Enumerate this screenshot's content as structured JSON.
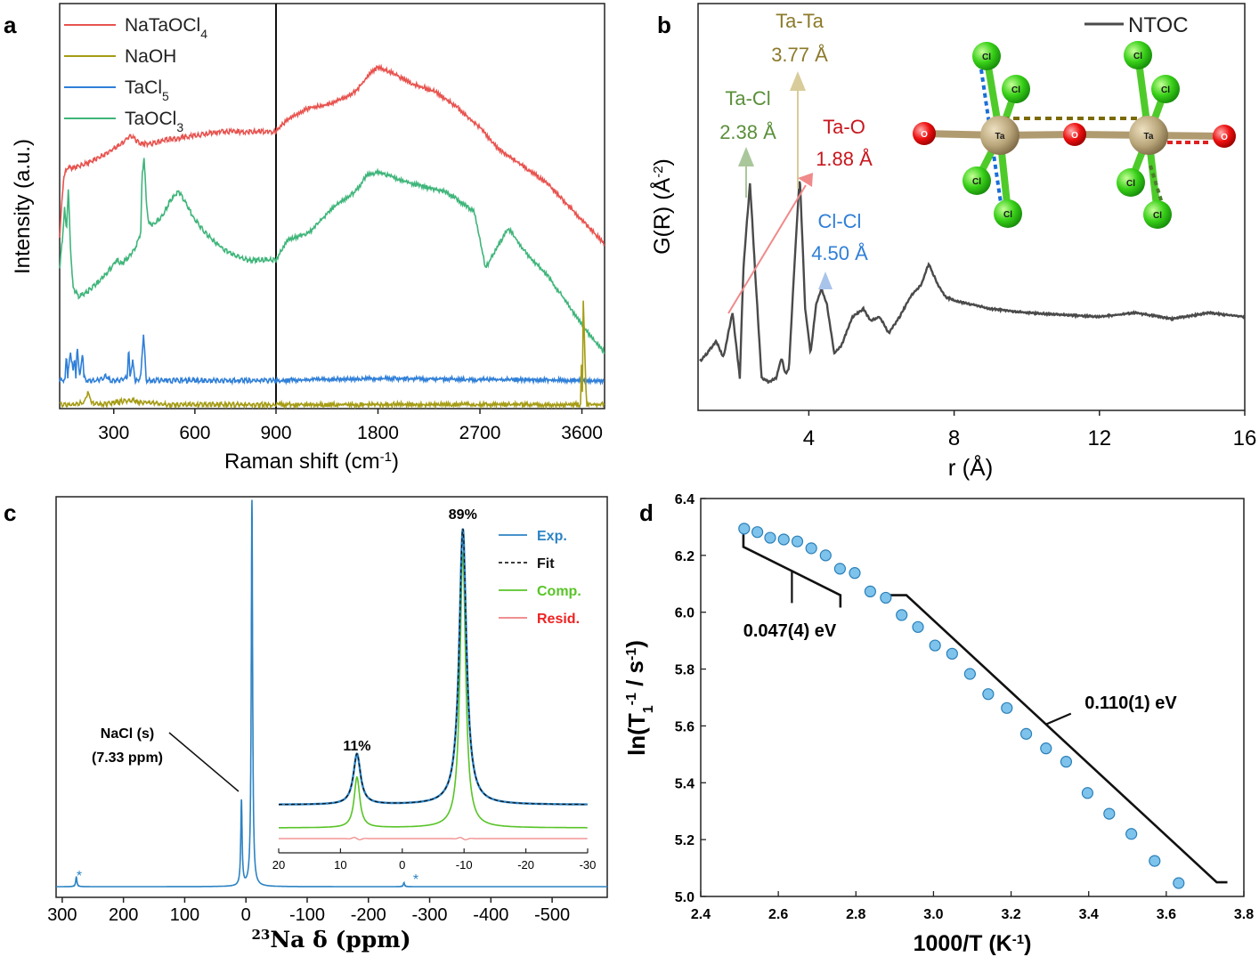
{
  "figure": {
    "background": "#ffffff"
  },
  "colors": {
    "red": "#e8534f",
    "olive": "#a59c14",
    "blue": "#2f7fd8",
    "green": "#3fb57a",
    "gray": "#4a4a4a",
    "brown": "#8c7a2a",
    "cl_green": "#5a8f3a",
    "o_red": "#c8161d",
    "exp": "#2c83c4",
    "fit": "#222222",
    "comp": "#58c428",
    "resid": "#f08080",
    "dot": "#7ec3ec"
  },
  "chart_data": [
    {
      "panel": "a",
      "type": "line",
      "xlabel_main": "Raman shift (cm",
      "xlabel_sup": "-1",
      "xlabel_close": ")",
      "ylabel": "Intensity (a.u.)",
      "xticks": [
        "300",
        "600",
        "900",
        "1800",
        "2700",
        "3600"
      ],
      "legend": [
        {
          "main": "NaTaOCl",
          "sub": "4",
          "color": "#e8534f"
        },
        {
          "main": "NaOH",
          "sub": "",
          "color": "#a59c14"
        },
        {
          "main": "TaCl",
          "sub": "5",
          "color": "#2f7fd8"
        },
        {
          "main": "TaOCl",
          "sub": "3",
          "color": "#3fb57a"
        }
      ],
      "break_at": 900,
      "left_range": [
        100,
        900
      ],
      "right_range": [
        900,
        3800
      ],
      "ylim": [
        0,
        100
      ],
      "series": [
        {
          "name": "NaTaOCl4",
          "color": "#e8534f",
          "x": [
            100,
            115,
            130,
            150,
            200,
            260,
            330,
            360,
            400,
            440,
            500,
            600,
            700,
            800,
            900,
            1000,
            1200,
            1400,
            1600,
            1750,
            1800,
            1900,
            2100,
            2300,
            2500,
            2700,
            2850,
            2950,
            3100,
            3300,
            3500,
            3700,
            3800
          ],
          "y": [
            43,
            58,
            60,
            60,
            61,
            63,
            66,
            68,
            66,
            66,
            67,
            68,
            69,
            69,
            69,
            72,
            75,
            76,
            79,
            84,
            85,
            84,
            81,
            79,
            75,
            70,
            65,
            63,
            60,
            56,
            50,
            44,
            41
          ]
        },
        {
          "name": "TaOCl3",
          "color": "#3fb57a",
          "x": [
            100,
            110,
            118,
            125,
            132,
            140,
            150,
            170,
            200,
            250,
            290,
            310,
            330,
            360,
            380,
            400,
            405,
            412,
            420,
            430,
            450,
            480,
            510,
            540,
            560,
            600,
            650,
            700,
            750,
            800,
            850,
            900,
            1000,
            1200,
            1400,
            1600,
            1700,
            1800,
            1900,
            2100,
            2400,
            2650,
            2750,
            2850,
            2950,
            3100,
            3300,
            3500,
            3650,
            3800
          ],
          "y": [
            35,
            42,
            50,
            44,
            55,
            40,
            30,
            28,
            29,
            32,
            35,
            37,
            36,
            38,
            40,
            44,
            58,
            63,
            52,
            46,
            46,
            48,
            52,
            54,
            52,
            47,
            43,
            40,
            38,
            37,
            37,
            37,
            42,
            44,
            50,
            54,
            58,
            59,
            58,
            56,
            54,
            49,
            35,
            40,
            45,
            39,
            33,
            25,
            19,
            14
          ]
        },
        {
          "name": "TaCl5",
          "color": "#2f7fd8",
          "x": [
            100,
            120,
            125,
            130,
            140,
            150,
            155,
            160,
            165,
            175,
            185,
            190,
            195,
            205,
            240,
            270,
            290,
            320,
            350,
            355,
            360,
            370,
            380,
            390,
            400,
            410,
            420,
            425,
            430,
            440,
            460,
            500,
            600,
            800,
            900,
            1800,
            3800
          ],
          "y": [
            7,
            7,
            14,
            8,
            14,
            9,
            13,
            8,
            15,
            8,
            14,
            8,
            7,
            7,
            7,
            8,
            7,
            7,
            8,
            15,
            8,
            12,
            7,
            7,
            8,
            19,
            7,
            7,
            7,
            7,
            7,
            7,
            7,
            7,
            7,
            7.5,
            7
          ]
        },
        {
          "name": "NaOH",
          "color": "#a59c14",
          "x": [
            100,
            150,
            190,
            205,
            220,
            260,
            330,
            370,
            400,
            430,
            500,
            600,
            900,
            3500,
            3590,
            3598,
            3603,
            3612,
            3640,
            3800
          ],
          "y": [
            1,
            1,
            1.5,
            4,
            1.5,
            1,
            1.8,
            2,
            1.5,
            1.5,
            1,
            1,
            1,
            1,
            1,
            15,
            1,
            27,
            1,
            1
          ]
        }
      ]
    },
    {
      "panel": "b",
      "type": "line",
      "title": "NTOC",
      "xlabel": "r (Å)",
      "ylabel_main": "G(R) (Å",
      "ylabel_sup": "-2",
      "ylabel_close": ")",
      "xlim": [
        1,
        16
      ],
      "xticks": [
        4,
        8,
        12,
        16
      ],
      "ylim": [
        0,
        100
      ],
      "annotations": [
        {
          "label": "Ta-Cl",
          "value": "2.38 Å",
          "color": "#5a8f3a"
        },
        {
          "label": "Ta-Ta",
          "value": "3.77 Å",
          "color": "#8c7a2a"
        },
        {
          "label": "Ta-O",
          "value": "1.88 Å",
          "color": "#c8161d"
        },
        {
          "label": "Cl-Cl",
          "value": "4.50 Å",
          "color": "#2f7fd8"
        }
      ],
      "series": [
        {
          "name": "NTOC",
          "color": "#4a4a4a",
          "x": [
            1.0,
            1.2,
            1.45,
            1.65,
            1.85,
            1.9,
            2.0,
            2.1,
            2.2,
            2.38,
            2.55,
            2.7,
            2.9,
            3.1,
            3.25,
            3.35,
            3.45,
            3.6,
            3.75,
            3.9,
            4.05,
            4.2,
            4.35,
            4.5,
            4.7,
            4.9,
            5.2,
            5.5,
            5.7,
            5.95,
            6.2,
            6.5,
            6.8,
            7.1,
            7.3,
            7.55,
            7.75,
            8.0,
            8.5,
            9,
            10,
            11,
            12,
            13,
            14,
            15,
            15.5,
            16
          ],
          "y": [
            12,
            14,
            17,
            13,
            22,
            24,
            16,
            8,
            35,
            56,
            30,
            8,
            7,
            8,
            13,
            9,
            10,
            35,
            58,
            25,
            14,
            26,
            30,
            26,
            14,
            16,
            23,
            25,
            22,
            23,
            19,
            23,
            28,
            31,
            36,
            31,
            28,
            27,
            26,
            25,
            24,
            23.5,
            23,
            24,
            22.5,
            24,
            23.5,
            23
          ]
        }
      ]
    },
    {
      "panel": "c",
      "type": "line",
      "xlabel_sup": "23",
      "xlabel_main": "Na δ (ppm)",
      "xlim": [
        310,
        -590
      ],
      "xticks": [
        "300",
        "200",
        "100",
        "0",
        "-100",
        "-200",
        "-300",
        "-400",
        "-500"
      ],
      "annotations": {
        "nacl_line1": "NaCl (s)",
        "nacl_line2": "(7.33 ppm)",
        "star": "*"
      },
      "legend": [
        {
          "name": "Exp.",
          "color": "#2c83c4",
          "text_color": "#2c83c4"
        },
        {
          "name": "Fit",
          "color": "#222222",
          "text_color": "#111111",
          "dash": true
        },
        {
          "name": "Comp.",
          "color": "#58c428",
          "text_color": "#58c428"
        },
        {
          "name": "Resid.",
          "color": "#f08080",
          "text_color": "#ee2222"
        }
      ],
      "main_peaks": [
        {
          "pos": 7.33,
          "height": 22
        },
        {
          "pos": -9.8,
          "height": 100
        }
      ],
      "spinning_sidebands": [
        {
          "pos": 277,
          "height": 2.5
        },
        {
          "pos": -258,
          "height": 1
        }
      ],
      "inset": {
        "xlim": [
          20,
          -30
        ],
        "xticks": [
          "20",
          "10",
          "0",
          "-10",
          "-20",
          "-30"
        ],
        "peaks": [
          {
            "pos": 7.33,
            "height": 11,
            "label": "11%"
          },
          {
            "pos": -9.8,
            "height": 60,
            "label": "89%"
          }
        ]
      }
    },
    {
      "panel": "d",
      "type": "scatter",
      "xlabel": "1000/T (K",
      "xlabel_sup": "-1",
      "xlabel_close": ")",
      "ylabel_a": "ln(T",
      "ylabel_sub": "1",
      "ylabel_sup1": "-1",
      "ylabel_b": " / s",
      "ylabel_sup2": "-1",
      "ylabel_c": ")",
      "xlim": [
        2.4,
        3.8
      ],
      "ylim": [
        5.0,
        6.4
      ],
      "xticks": [
        "2.4",
        "2.6",
        "2.8",
        "3.0",
        "3.2",
        "3.4",
        "3.6",
        "3.8"
      ],
      "yticks": [
        "5.0",
        "5.2",
        "5.4",
        "5.6",
        "5.8",
        "6.0",
        "6.2",
        "6.4"
      ],
      "fit_low": {
        "label": "0.047(4) eV",
        "x": [
          2.51,
          2.76
        ],
        "y": [
          6.23,
          6.06
        ]
      },
      "fit_high": {
        "label": "0.110(1) eV",
        "x": [
          2.93,
          3.73
        ],
        "y": [
          6.06,
          5.05
        ]
      },
      "points": {
        "x": [
          2.512,
          2.546,
          2.579,
          2.614,
          2.649,
          2.685,
          2.722,
          2.759,
          2.797,
          2.837,
          2.877,
          2.918,
          2.96,
          3.004,
          3.048,
          3.094,
          3.141,
          3.189,
          3.239,
          3.29,
          3.342,
          3.397,
          3.453,
          3.51,
          3.57,
          3.632
        ],
        "y": [
          6.294,
          6.282,
          6.262,
          6.256,
          6.249,
          6.225,
          6.2,
          6.153,
          6.138,
          6.073,
          6.051,
          5.99,
          5.948,
          5.883,
          5.854,
          5.783,
          5.712,
          5.663,
          5.572,
          5.521,
          5.474,
          5.364,
          5.291,
          5.22,
          5.125,
          5.047
        ]
      }
    }
  ],
  "panels": {
    "a": "a",
    "b": "b",
    "c": "c",
    "d": "d"
  },
  "molecule": {
    "ta_label": "Ta",
    "cl_label": "Cl",
    "o_label": "O"
  }
}
